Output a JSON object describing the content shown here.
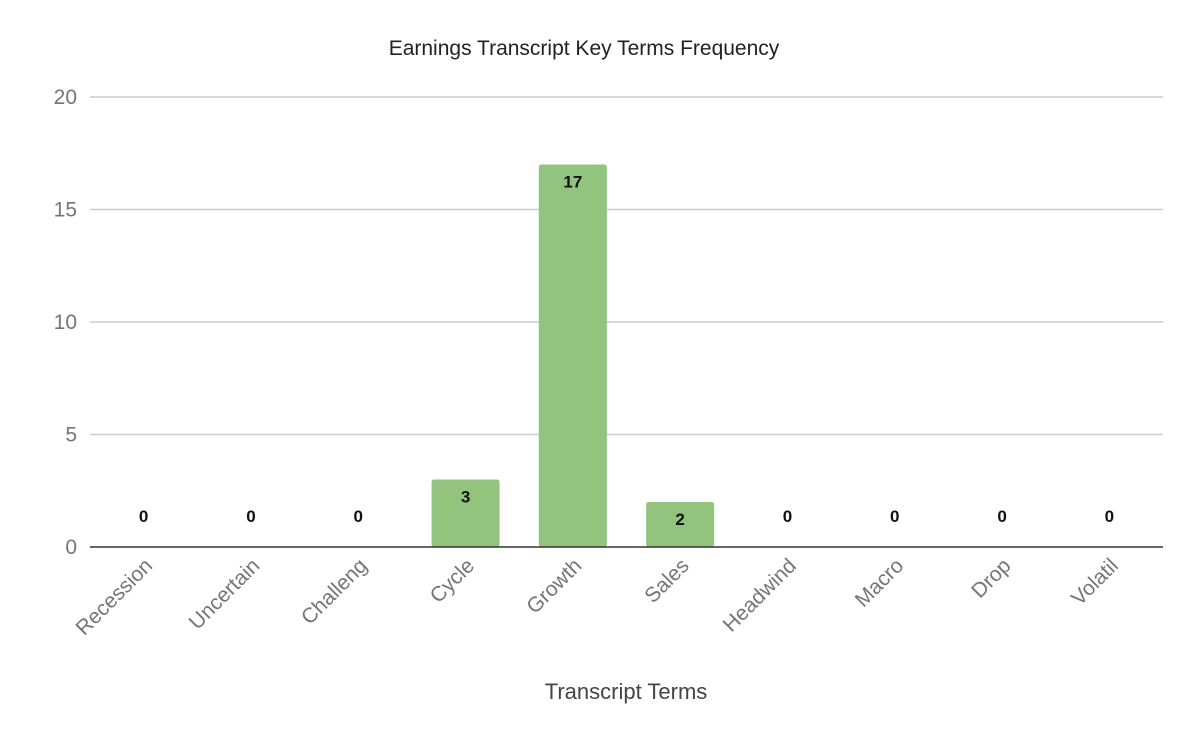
{
  "chart_data": {
    "type": "bar",
    "title": "Earnings Transcript Key Terms Frequency",
    "xlabel": "Transcript Terms",
    "ylabel": "",
    "categories": [
      "Recession",
      "Uncertain",
      "Challeng",
      "Cycle",
      "Growth",
      "Sales",
      "Headwind",
      "Macro",
      "Drop",
      "Volatil"
    ],
    "values": [
      0,
      0,
      0,
      3,
      17,
      2,
      0,
      0,
      0,
      0
    ],
    "ylim": [
      0,
      20
    ],
    "yticks": [
      0,
      5,
      10,
      15,
      20
    ],
    "grid": true,
    "legend": "none",
    "bar_color": "#93c47d",
    "data_labels": true
  }
}
